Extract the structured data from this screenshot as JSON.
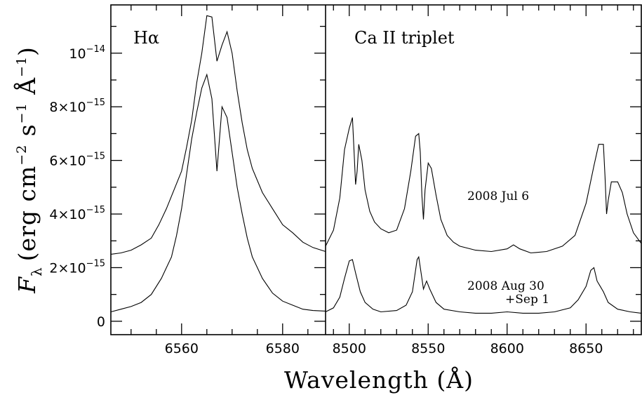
{
  "chart_data": {
    "type": "line",
    "xlabel": "Wavelength (Å)",
    "ylabel_prefix": "F",
    "ylabel_sub": "λ",
    "ylabel_text": "(erg cm",
    "ylabel_e1": "−2",
    "ylabel_mid": " s",
    "ylabel_e2": "−1",
    "ylabel_mid2": " Å",
    "ylabel_e3": "−1",
    "ylabel_close": ")",
    "ylim": [
      -5e-16,
      1.18e-14
    ],
    "y_ticks": [
      {
        "value": 0,
        "mant": "0",
        "exp": ""
      },
      {
        "value": 2e-15,
        "mant": "2×10",
        "exp": "−15"
      },
      {
        "value": 4e-15,
        "mant": "4×10",
        "exp": "−15"
      },
      {
        "value": 6e-15,
        "mant": "6×10",
        "exp": "−15"
      },
      {
        "value": 8e-15,
        "mant": "8×10",
        "exp": "−15"
      },
      {
        "value": 1e-14,
        "mant": "10",
        "exp": "−14"
      }
    ],
    "panels": [
      {
        "label": "Hα",
        "xlim": [
          6546,
          6588.5
        ],
        "x_ticks": [
          6560,
          6580
        ],
        "series": [
          {
            "epoch": "2008 Jul 6",
            "points": [
              [
                6546,
                2.5e-15
              ],
              [
                6548,
                2.55e-15
              ],
              [
                6550,
                2.65e-15
              ],
              [
                6552,
                2.85e-15
              ],
              [
                6554,
                3.1e-15
              ],
              [
                6555.5,
                3.6e-15
              ],
              [
                6557,
                4.2e-15
              ],
              [
                6558.5,
                4.9e-15
              ],
              [
                6560,
                5.6e-15
              ],
              [
                6561,
                6.5e-15
              ],
              [
                6562,
                7.5e-15
              ],
              [
                6563,
                8.9e-15
              ],
              [
                6564,
                1e-14
              ],
              [
                6565,
                1.14e-14
              ],
              [
                6566,
                1.135e-14
              ],
              [
                6567,
                9.7e-15
              ],
              [
                6568,
                1.03e-14
              ],
              [
                6569,
                1.08e-14
              ],
              [
                6570,
                1e-14
              ],
              [
                6571,
                8.6e-15
              ],
              [
                6572,
                7.4e-15
              ],
              [
                6573,
                6.4e-15
              ],
              [
                6574,
                5.7e-15
              ],
              [
                6576,
                4.8e-15
              ],
              [
                6578,
                4.2e-15
              ],
              [
                6580,
                3.6e-15
              ],
              [
                6582,
                3.3e-15
              ],
              [
                6584,
                2.95e-15
              ],
              [
                6586,
                2.75e-15
              ],
              [
                6588.5,
                2.6e-15
              ]
            ]
          },
          {
            "epoch": "2008 Aug 30 +Sep 1",
            "points": [
              [
                6546,
                3.5e-16
              ],
              [
                6548,
                4.5e-16
              ],
              [
                6550,
                5.5e-16
              ],
              [
                6552,
                7e-16
              ],
              [
                6554,
                1e-15
              ],
              [
                6556,
                1.6e-15
              ],
              [
                6558,
                2.4e-15
              ],
              [
                6559,
                3.2e-15
              ],
              [
                6560,
                4.2e-15
              ],
              [
                6561,
                5.5e-15
              ],
              [
                6562,
                6.8e-15
              ],
              [
                6563,
                7.8e-15
              ],
              [
                6564,
                8.7e-15
              ],
              [
                6565,
                9.2e-15
              ],
              [
                6566,
                8.3e-15
              ],
              [
                6567,
                5.6e-15
              ],
              [
                6568,
                8e-15
              ],
              [
                6569,
                7.6e-15
              ],
              [
                6570,
                6.3e-15
              ],
              [
                6571,
                5e-15
              ],
              [
                6572,
                4e-15
              ],
              [
                6573,
                3.1e-15
              ],
              [
                6574,
                2.4e-15
              ],
              [
                6576,
                1.6e-15
              ],
              [
                6578,
                1.05e-15
              ],
              [
                6580,
                7.5e-16
              ],
              [
                6582,
                6e-16
              ],
              [
                6584,
                4.5e-16
              ],
              [
                6586,
                4e-16
              ],
              [
                6588.5,
                3.8e-16
              ]
            ]
          }
        ]
      },
      {
        "label": "Ca II triplet",
        "xlim": [
          8485,
          8685
        ],
        "x_ticks": [
          8500,
          8550,
          8600,
          8650
        ],
        "series": [
          {
            "epoch": "2008 Jul 6",
            "points": [
              [
                8485,
                2.8e-15
              ],
              [
                8490,
                3.4e-15
              ],
              [
                8494,
                4.6e-15
              ],
              [
                8497,
                6.4e-15
              ],
              [
                8500,
                7.2e-15
              ],
              [
                8502,
                7.6e-15
              ],
              [
                8503,
                6.4e-15
              ],
              [
                8504,
                5.1e-15
              ],
              [
                8505,
                5.6e-15
              ],
              [
                8506,
                6.6e-15
              ],
              [
                8508,
                6e-15
              ],
              [
                8510,
                4.9e-15
              ],
              [
                8513,
                4.1e-15
              ],
              [
                8516,
                3.7e-15
              ],
              [
                8520,
                3.45e-15
              ],
              [
                8525,
                3.3e-15
              ],
              [
                8530,
                3.4e-15
              ],
              [
                8535,
                4.2e-15
              ],
              [
                8539,
                5.6e-15
              ],
              [
                8542,
                6.9e-15
              ],
              [
                8544,
                7e-15
              ],
              [
                8545,
                6.3e-15
              ],
              [
                8546,
                4.7e-15
              ],
              [
                8547,
                3.8e-15
              ],
              [
                8548,
                4.9e-15
              ],
              [
                8550,
                5.9e-15
              ],
              [
                8552,
                5.7e-15
              ],
              [
                8555,
                4.7e-15
              ],
              [
                8558,
                3.8e-15
              ],
              [
                8562,
                3.2e-15
              ],
              [
                8566,
                2.95e-15
              ],
              [
                8570,
                2.8e-15
              ],
              [
                8580,
                2.65e-15
              ],
              [
                8590,
                2.6e-15
              ],
              [
                8600,
                2.7e-15
              ],
              [
                8604,
                2.85e-15
              ],
              [
                8608,
                2.7e-15
              ],
              [
                8615,
                2.55e-15
              ],
              [
                8625,
                2.6e-15
              ],
              [
                8635,
                2.8e-15
              ],
              [
                8643,
                3.2e-15
              ],
              [
                8650,
                4.4e-15
              ],
              [
                8655,
                5.8e-15
              ],
              [
                8658,
                6.6e-15
              ],
              [
                8661,
                6.6e-15
              ],
              [
                8662,
                5.4e-15
              ],
              [
                8663,
                4e-15
              ],
              [
                8664,
                4.5e-15
              ],
              [
                8666,
                5.2e-15
              ],
              [
                8670,
                5.2e-15
              ],
              [
                8673,
                4.8e-15
              ],
              [
                8676,
                4e-15
              ],
              [
                8680,
                3.3e-15
              ],
              [
                8685,
                2.9e-15
              ]
            ]
          },
          {
            "epoch": "2008 Aug 30 +Sep 1",
            "points": [
              [
                8485,
                3.5e-16
              ],
              [
                8490,
                5e-16
              ],
              [
                8494,
                9e-16
              ],
              [
                8497,
                1.6e-15
              ],
              [
                8500,
                2.25e-15
              ],
              [
                8502,
                2.3e-15
              ],
              [
                8504,
                1.8e-15
              ],
              [
                8507,
                1.1e-15
              ],
              [
                8510,
                7e-16
              ],
              [
                8515,
                4.5e-16
              ],
              [
                8520,
                3.5e-16
              ],
              [
                8530,
                4e-16
              ],
              [
                8536,
                6e-16
              ],
              [
                8540,
                1.1e-15
              ],
              [
                8543,
                2.3e-15
              ],
              [
                8544,
                2.4e-15
              ],
              [
                8546,
                1.6e-15
              ],
              [
                8547,
                1.2e-15
              ],
              [
                8549,
                1.5e-15
              ],
              [
                8551,
                1.2e-15
              ],
              [
                8555,
                7e-16
              ],
              [
                8560,
                4.5e-16
              ],
              [
                8570,
                3.5e-16
              ],
              [
                8580,
                3e-16
              ],
              [
                8590,
                3e-16
              ],
              [
                8600,
                3.5e-16
              ],
              [
                8610,
                3e-16
              ],
              [
                8620,
                3e-16
              ],
              [
                8630,
                3.5e-16
              ],
              [
                8640,
                5e-16
              ],
              [
                8645,
                8e-16
              ],
              [
                8650,
                1.3e-15
              ],
              [
                8653,
                1.9e-15
              ],
              [
                8655,
                2e-15
              ],
              [
                8657,
                1.5e-15
              ],
              [
                8659,
                1.3e-15
              ],
              [
                8661,
                1.1e-15
              ],
              [
                8664,
                7e-16
              ],
              [
                8670,
                4.5e-16
              ],
              [
                8678,
                3.5e-16
              ],
              [
                8685,
                3e-16
              ]
            ]
          }
        ]
      }
    ],
    "annotations": [
      {
        "text": "2008 Jul 6"
      },
      {
        "text": "2008 Aug 30"
      },
      {
        "text": "+Sep 1"
      }
    ]
  }
}
